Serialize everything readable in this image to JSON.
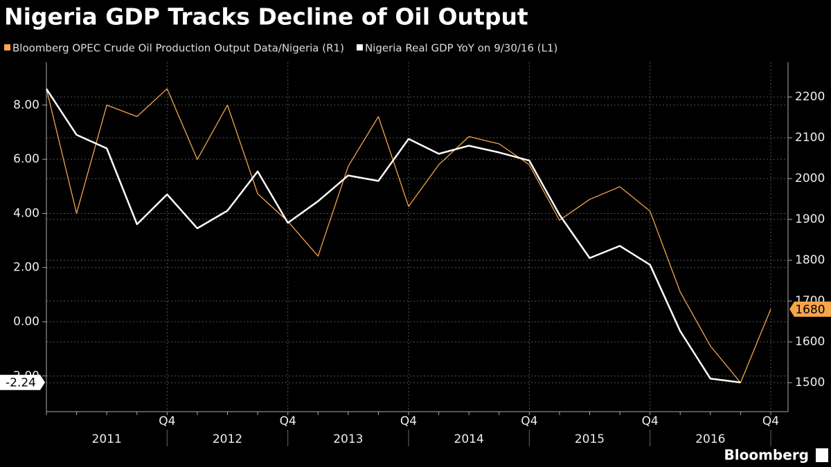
{
  "chart_data": {
    "type": "line",
    "title": "Nigeria GDP Tracks Decline of Oil Output",
    "categories": [
      null,
      null,
      null,
      null,
      "Q4",
      null,
      null,
      null,
      "Q4",
      null,
      null,
      null,
      "Q4",
      null,
      null,
      null,
      "Q4",
      null,
      null,
      null,
      "Q4",
      null,
      null,
      null,
      "Q4"
    ],
    "x_groups": [
      "2011",
      "2012",
      "2013",
      "2014",
      "2015",
      "2016"
    ],
    "series": [
      {
        "name": "Bloomberg OPEC Crude Oil Production Output Data/Nigeria  (R1)",
        "color": "#f5a54a",
        "axis": "y2",
        "values": [
          2220,
          1915,
          2180,
          2152,
          2220,
          2047,
          2180,
          1963,
          1895,
          1810,
          2030,
          2152,
          1932,
          2034,
          2103,
          2085,
          2034,
          1898,
          1949,
          1980,
          1920,
          1722,
          1590,
          1500,
          1680
        ]
      },
      {
        "name": "Nigeria Real GDP YoY  on 9/30/16 (L1)",
        "color": "#ffffff",
        "axis": "y",
        "values": [
          8.6,
          6.9,
          6.4,
          3.6,
          4.7,
          3.45,
          4.1,
          5.55,
          3.65,
          4.45,
          5.4,
          5.2,
          6.75,
          6.2,
          6.5,
          6.25,
          5.95,
          3.95,
          2.35,
          2.8,
          2.1,
          -0.35,
          -2.1,
          -2.24,
          null
        ]
      }
    ],
    "ylim": [
      -3.32,
      9.58
    ],
    "yticks": [
      {
        "value": -2,
        "label": "-2.00"
      },
      {
        "value": 0,
        "label": "0.00"
      },
      {
        "value": 2,
        "label": "2.00"
      },
      {
        "value": 4,
        "label": "4.00"
      },
      {
        "value": 6,
        "label": "6.00"
      },
      {
        "value": 8,
        "label": "8.00"
      }
    ],
    "y2lim": [
      1429,
      2285
    ],
    "y2ticks": [
      1500,
      1600,
      1700,
      1800,
      1900,
      2000,
      2100,
      2200
    ],
    "grid": true,
    "source": "Bloomberg"
  }
}
